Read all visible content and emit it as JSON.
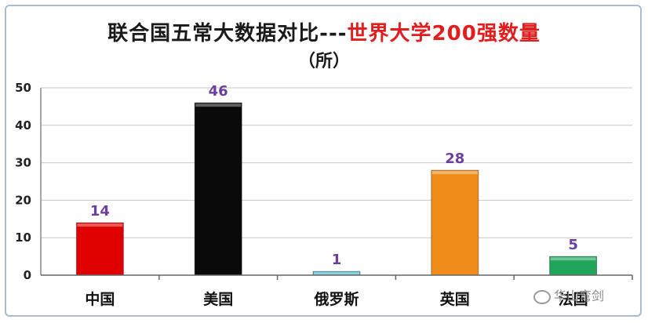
{
  "chart_data": {
    "type": "bar",
    "title_part1": "联合国五常大数据对比---",
    "title_part2": "世界大学200强数量",
    "subtitle": "（所）",
    "categories": [
      "中国",
      "美国",
      "俄罗斯",
      "英国",
      "法国"
    ],
    "values": [
      14,
      46,
      1,
      28,
      5
    ],
    "colors": [
      "#e00000",
      "#0a0a0a",
      "#5bb8d0",
      "#f08c1a",
      "#1fa65a"
    ],
    "ylim": [
      0,
      50
    ],
    "yticks": [
      0,
      10,
      20,
      30,
      40,
      50
    ],
    "grid": true,
    "xlabel": "",
    "ylabel": ""
  },
  "watermark": "华山弯剑"
}
